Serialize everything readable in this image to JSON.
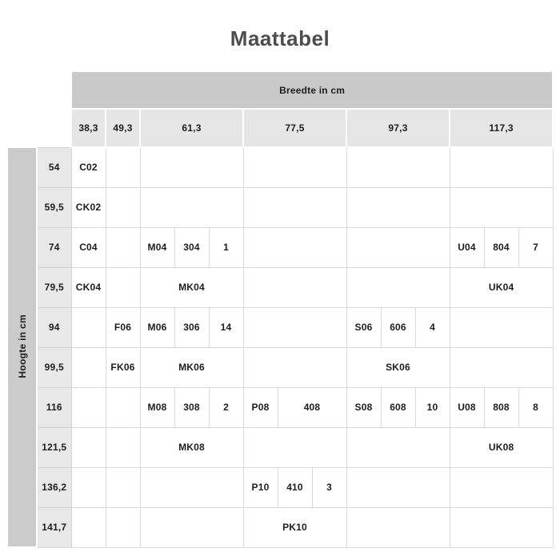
{
  "title": "Maattabel",
  "colors": {
    "header_bar_bg": "#c9c9c9",
    "column_header_bg": "#e6e6e6",
    "row_header_bg": "#e8e8e8",
    "height_strip_bg": "#cbcbcb",
    "body_border": "#d9d9d9",
    "title_text": "#4d4d4d",
    "cell_text": "#1d1d1d"
  },
  "table": {
    "width_header_label": "Breedte in cm",
    "height_header_label": "Hoogte in cm",
    "column_headers": [
      {
        "label": "38,3",
        "span": 1
      },
      {
        "label": "49,3",
        "span": 1
      },
      {
        "label": "61,3",
        "span": 3
      },
      {
        "label": "77,5",
        "span": 3
      },
      {
        "label": "97,3",
        "span": 3
      },
      {
        "label": "117,3",
        "span": 3
      }
    ],
    "rows": [
      {
        "height": "54",
        "cells": [
          {
            "text": "C02",
            "span": 1
          },
          {
            "text": "",
            "span": 1
          },
          {
            "text": "",
            "span": 3
          },
          {
            "text": "",
            "span": 3
          },
          {
            "text": "",
            "span": 3
          },
          {
            "text": "",
            "span": 3
          }
        ]
      },
      {
        "height": "59,5",
        "cells": [
          {
            "text": "CK02",
            "span": 1
          },
          {
            "text": "",
            "span": 1
          },
          {
            "text": "",
            "span": 3
          },
          {
            "text": "",
            "span": 3
          },
          {
            "text": "",
            "span": 3
          },
          {
            "text": "",
            "span": 3
          }
        ]
      },
      {
        "height": "74",
        "cells": [
          {
            "text": "C04",
            "span": 1
          },
          {
            "text": "",
            "span": 1
          },
          {
            "text": "M04",
            "span": 1
          },
          {
            "text": "304",
            "span": 1
          },
          {
            "text": "1",
            "span": 1
          },
          {
            "text": "",
            "span": 3
          },
          {
            "text": "",
            "span": 3
          },
          {
            "text": "U04",
            "span": 1
          },
          {
            "text": "804",
            "span": 1
          },
          {
            "text": "7",
            "span": 1
          }
        ]
      },
      {
        "height": "79,5",
        "cells": [
          {
            "text": "CK04",
            "span": 1
          },
          {
            "text": "",
            "span": 1
          },
          {
            "text": "MK04",
            "span": 3
          },
          {
            "text": "",
            "span": 3
          },
          {
            "text": "",
            "span": 3
          },
          {
            "text": "UK04",
            "span": 3
          }
        ]
      },
      {
        "height": "94",
        "cells": [
          {
            "text": "",
            "span": 1
          },
          {
            "text": "F06",
            "span": 1
          },
          {
            "text": "M06",
            "span": 1
          },
          {
            "text": "306",
            "span": 1
          },
          {
            "text": "14",
            "span": 1
          },
          {
            "text": "",
            "span": 3
          },
          {
            "text": "S06",
            "span": 1
          },
          {
            "text": "606",
            "span": 1
          },
          {
            "text": "4",
            "span": 1
          },
          {
            "text": "",
            "span": 3
          }
        ]
      },
      {
        "height": "99,5",
        "cells": [
          {
            "text": "",
            "span": 1
          },
          {
            "text": "FK06",
            "span": 1
          },
          {
            "text": "MK06",
            "span": 3
          },
          {
            "text": "",
            "span": 3
          },
          {
            "text": "SK06",
            "span": 3
          },
          {
            "text": "",
            "span": 3
          }
        ]
      },
      {
        "height": "116",
        "cells": [
          {
            "text": "",
            "span": 1
          },
          {
            "text": "",
            "span": 1
          },
          {
            "text": "M08",
            "span": 1
          },
          {
            "text": "308",
            "span": 1
          },
          {
            "text": "2",
            "span": 1
          },
          {
            "text": "P08",
            "span": 1
          },
          {
            "text": "408",
            "span": 2
          },
          {
            "text": "S08",
            "span": 1
          },
          {
            "text": "608",
            "span": 1
          },
          {
            "text": "10",
            "span": 1
          },
          {
            "text": "U08",
            "span": 1
          },
          {
            "text": "808",
            "span": 1
          },
          {
            "text": "8",
            "span": 1
          }
        ]
      },
      {
        "height": "121,5",
        "cells": [
          {
            "text": "",
            "span": 1
          },
          {
            "text": "",
            "span": 1
          },
          {
            "text": "MK08",
            "span": 3
          },
          {
            "text": "",
            "span": 3
          },
          {
            "text": "",
            "span": 3
          },
          {
            "text": "UK08",
            "span": 3
          }
        ]
      },
      {
        "height": "136,2",
        "cells": [
          {
            "text": "",
            "span": 1
          },
          {
            "text": "",
            "span": 1
          },
          {
            "text": "",
            "span": 3
          },
          {
            "text": "P10",
            "span": 1
          },
          {
            "text": "410",
            "span": 1
          },
          {
            "text": "3",
            "span": 1
          },
          {
            "text": "",
            "span": 3
          },
          {
            "text": "",
            "span": 3
          }
        ]
      },
      {
        "height": "141,7",
        "cells": [
          {
            "text": "",
            "span": 1
          },
          {
            "text": "",
            "span": 1
          },
          {
            "text": "",
            "span": 3
          },
          {
            "text": "PK10",
            "span": 3
          },
          {
            "text": "",
            "span": 3
          },
          {
            "text": "",
            "span": 3
          }
        ]
      }
    ]
  }
}
